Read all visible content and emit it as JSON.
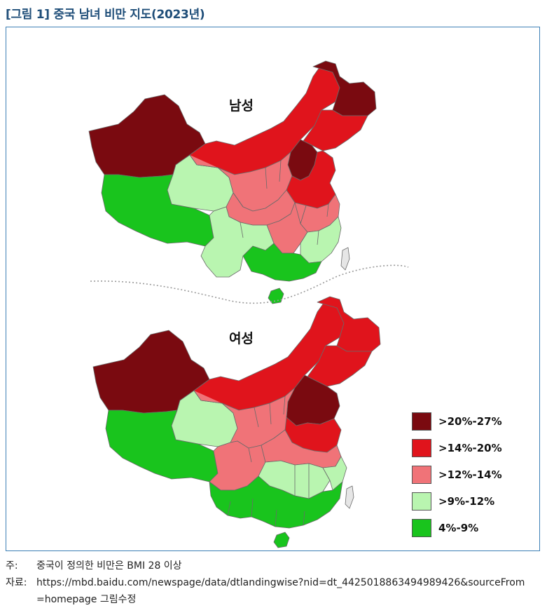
{
  "figure": {
    "label": "[그림 1]",
    "title": "중국 남녀 비만 지도(2023년)"
  },
  "maps": {
    "male_label": "남성",
    "female_label": "여성"
  },
  "legend": [
    {
      "text": ">20%-27%",
      "color": "#7a0a10"
    },
    {
      "text": ">14%-20%",
      "color": "#e0141c"
    },
    {
      "text": ">12%-14%",
      "color": "#f07378"
    },
    {
      "text": ">9%-12%",
      "color": "#b9f5b0"
    },
    {
      "text": "4%-9%",
      "color": "#19c41d"
    }
  ],
  "notes": {
    "note_label": "주:",
    "note_text": "중국이 정의한 비만은 BMI 28 이상",
    "source_label": "자료:",
    "source_line1": "https://mbd.baidu.com/newspage/data/dtlandingwise?nid=dt_4425018863494989426&sourceFrom",
    "source_line2": "=homepage 그림수정"
  }
}
